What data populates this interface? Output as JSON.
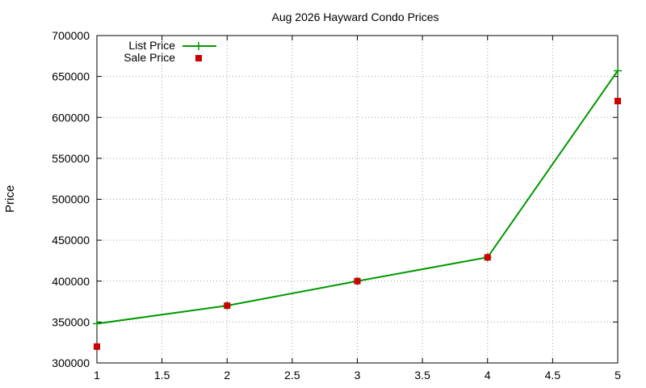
{
  "chart_data": {
    "type": "line",
    "title": "Aug 2026 Hayward Condo Prices",
    "xlabel": "",
    "ylabel": "Price",
    "xlim": [
      1,
      5
    ],
    "ylim": [
      300000,
      700000
    ],
    "x_ticks": [
      "1",
      "1.5",
      "2",
      "2.5",
      "3",
      "3.5",
      "4",
      "4.5",
      "5"
    ],
    "y_ticks": [
      "300000",
      "350000",
      "400000",
      "450000",
      "500000",
      "550000",
      "600000",
      "650000",
      "700000"
    ],
    "grid": true,
    "legend_position": "top-left",
    "series": [
      {
        "name": "List Price",
        "style": "line with plus markers",
        "color": "#009900",
        "x": [
          1,
          2,
          3,
          4,
          5
        ],
        "y": [
          348000,
          370000,
          400000,
          429000,
          657000
        ]
      },
      {
        "name": "Sale Price",
        "style": "square points",
        "color": "#cc0000",
        "x": [
          1,
          2,
          3,
          4,
          5
        ],
        "y": [
          320000,
          370000,
          400000,
          429000,
          620000
        ]
      }
    ]
  }
}
